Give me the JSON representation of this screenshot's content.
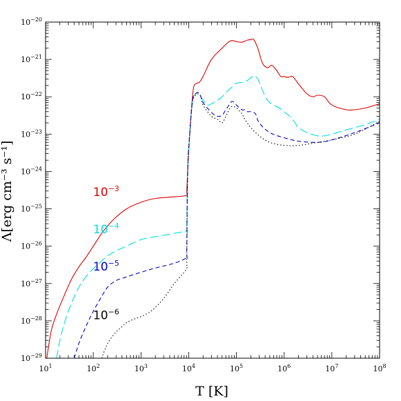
{
  "chart_data": {
    "type": "line",
    "xlabel": "T [K]",
    "ylabel": "Λ[erg cm⁻³ s⁻¹]",
    "xscale": "log",
    "yscale": "log",
    "xlim": [
      10,
      100000000
    ],
    "ylim": [
      1e-29,
      1e-20
    ],
    "grid": false,
    "x_tick_exponents": [
      1,
      2,
      3,
      4,
      5,
      6,
      7,
      8
    ],
    "y_tick_exponents": [
      -29,
      -28,
      -27,
      -26,
      -25,
      -24,
      -23,
      -22,
      -21,
      -20
    ],
    "series": [
      {
        "name": "10⁻³",
        "label_base": "10",
        "label_exp": "−3",
        "color": "#dd0000",
        "dash": "solid",
        "label_at": [
          350,
          2.2e-25
        ],
        "x": [
          10,
          13,
          17,
          25,
          35,
          50,
          70,
          100,
          150,
          200,
          300,
          500,
          1000,
          2000,
          5000,
          9000,
          9100,
          9500,
          10500,
          12000,
          13000,
          15000,
          17000,
          20000,
          30000,
          50000,
          70000,
          85000,
          100000,
          130000,
          170000,
          200000,
          230000,
          280000,
          350000,
          450000,
          550000,
          700000,
          850000,
          1000000,
          1200000,
          1500000,
          2000000,
          3000000,
          4000000,
          5000000,
          7000000,
          10000000,
          20000000,
          30000000,
          50000000,
          100000000
        ],
        "y": [
          6e-30,
          5e-29,
          1.5e-28,
          5e-28,
          1.3e-27,
          2.8e-27,
          5e-27,
          1e-26,
          2.2e-26,
          3.5e-26,
          6e-26,
          1e-25,
          1.5e-25,
          1.9e-25,
          2.1e-25,
          2.3e-25,
          3e-25,
          1e-24,
          1e-23,
          1e-22,
          2e-22,
          2.3e-22,
          2.5e-22,
          3.5e-22,
          1e-21,
          2e-21,
          3e-21,
          3.2e-21,
          3e-21,
          2.9e-21,
          3.3e-21,
          3.4e-21,
          3.4e-21,
          2e-21,
          8e-22,
          6e-22,
          7e-22,
          5e-22,
          3.5e-22,
          3.5e-22,
          3.3e-22,
          3.5e-22,
          2.2e-22,
          1.2e-22,
          1e-22,
          1.1e-22,
          1e-22,
          6e-23,
          4.5e-23,
          4.5e-23,
          5e-23,
          6.5e-23
        ]
      },
      {
        "name": "10⁻⁴",
        "label_base": "10",
        "label_exp": "−4",
        "color": "#00dede",
        "dash": "long-dash",
        "label_at": [
          350,
          2.2e-26
        ],
        "x": [
          17,
          20,
          25,
          35,
          50,
          70,
          100,
          150,
          200,
          300,
          500,
          1000,
          2000,
          5000,
          9000,
          9100,
          9500,
          10500,
          12000,
          14000,
          16000,
          18000,
          20000,
          25000,
          30000,
          40000,
          50000,
          60000,
          80000,
          100000,
          150000,
          200000,
          230000,
          280000,
          350000,
          450000,
          600000,
          800000,
          1000000,
          1300000,
          1700000,
          2000000,
          3000000,
          5000000,
          7000000,
          10000000,
          20000000,
          50000000,
          100000000
        ],
        "y": [
          1e-29,
          3e-29,
          9e-29,
          3e-28,
          8e-28,
          1.5e-27,
          2.5e-27,
          4e-27,
          5.5e-27,
          7.5e-27,
          1e-26,
          1.5e-26,
          1.8e-26,
          2.2e-26,
          2.6e-26,
          3e-26,
          1e-24,
          1e-23,
          8e-23,
          1.2e-22,
          1.3e-22,
          1e-22,
          8e-23,
          6e-23,
          6.5e-23,
          8e-23,
          1e-22,
          1.3e-22,
          1.8e-22,
          2.3e-22,
          2.5e-22,
          3.2e-22,
          3.6e-22,
          3e-22,
          1.5e-22,
          8e-23,
          6e-23,
          5e-23,
          4e-23,
          3e-23,
          2e-23,
          1.5e-23,
          1.1e-23,
          9e-24,
          9e-24,
          1e-23,
          1.3e-23,
          1.8e-23,
          2.5e-23
        ]
      },
      {
        "name": "10⁻⁵",
        "label_base": "10",
        "label_exp": "−5",
        "color": "#0000cc",
        "dash": "dash",
        "label_at": [
          350,
          2.2e-27
        ],
        "x": [
          40,
          50,
          70,
          100,
          150,
          200,
          300,
          500,
          1000,
          2000,
          5000,
          9000,
          9100,
          9500,
          10500,
          12000,
          14000,
          16000,
          18000,
          20000,
          30000,
          40000,
          50000,
          60000,
          70000,
          80000,
          90000,
          100000,
          130000,
          150000,
          170000,
          200000,
          250000,
          300000,
          500000,
          1000000,
          2000000,
          5000000,
          10000000,
          30000000,
          100000000
        ],
        "y": [
          1e-29,
          2.5e-29,
          7e-29,
          1.8e-28,
          4.5e-28,
          8e-28,
          1.2e-27,
          1.5e-27,
          2e-27,
          2.6e-27,
          3.5e-27,
          5e-27,
          8e-27,
          1e-24,
          1e-23,
          8e-23,
          1.2e-22,
          1.3e-22,
          1e-22,
          7e-23,
          3.8e-23,
          3e-23,
          3.2e-23,
          4.5e-23,
          6e-23,
          7.5e-23,
          7e-23,
          6e-23,
          4.5e-23,
          4.5e-23,
          4e-23,
          4e-23,
          3.5e-23,
          2e-23,
          1.1e-23,
          8e-24,
          6.5e-24,
          6e-24,
          7e-24,
          1.1e-23,
          2e-23
        ]
      },
      {
        "name": "10⁻⁶",
        "label_base": "10",
        "label_exp": "−6",
        "color": "#000000",
        "dash": "dot",
        "label_at": [
          350,
          1.1e-28
        ],
        "x": [
          150,
          200,
          300,
          400,
          500,
          700,
          1000,
          1500,
          2000,
          3000,
          5000,
          9000,
          9100,
          9500,
          10500,
          12000,
          14000,
          16000,
          18000,
          20000,
          30000,
          40000,
          50000,
          60000,
          70000,
          80000,
          100000,
          130000,
          150000,
          200000,
          300000,
          500000,
          1000000,
          2000000,
          5000000,
          10000000,
          30000000,
          100000000
        ],
        "y": [
          1e-29,
          2.5e-29,
          5e-29,
          7e-29,
          9e-29,
          1.1e-28,
          1.3e-28,
          1.7e-28,
          2.3e-28,
          4e-28,
          1e-27,
          2.5e-27,
          5e-27,
          1e-24,
          1e-23,
          7e-23,
          1.1e-22,
          1.2e-22,
          1e-22,
          6e-23,
          3e-23,
          2.5e-23,
          2e-23,
          3e-23,
          4.5e-23,
          5.5e-23,
          5e-23,
          3.5e-23,
          2.5e-23,
          1.5e-23,
          9e-24,
          6e-24,
          5e-24,
          5e-24,
          6e-24,
          7e-24,
          1e-23,
          2.2e-23
        ]
      }
    ]
  }
}
